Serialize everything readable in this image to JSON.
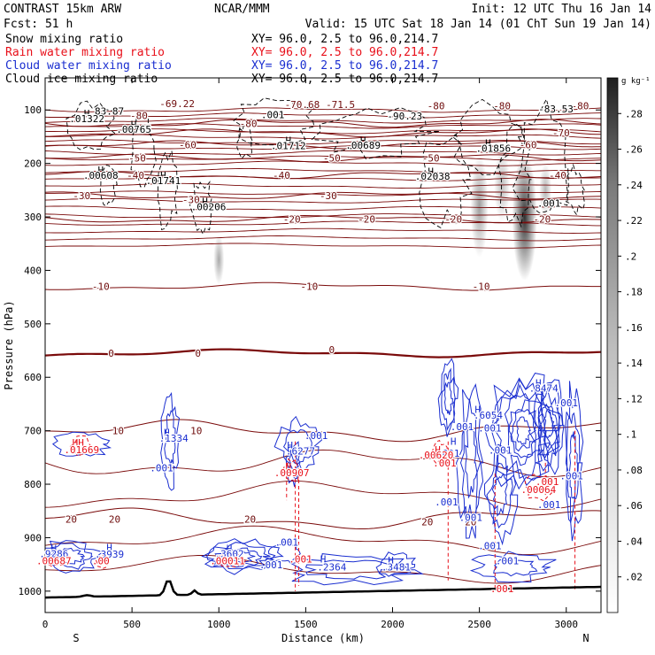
{
  "header": {
    "line1_left": "CONTRAST 15km ARW",
    "line1_center": "NCAR/MMM",
    "line1_right": "Init: 12 UTC Thu 16 Jan 14",
    "line2_left": "Fcst:   51 h",
    "line2_right": "Valid: 15 UTC Sat 18 Jan 14 (01 ChT Sun 19 Jan 14)"
  },
  "chart_data": {
    "type": "cross-section",
    "xlabel": "Distance (km)",
    "ylabel": "Pressure (hPa)",
    "x_ticks": [
      "0",
      "500",
      "1000",
      "1500",
      "2000",
      "2500",
      "3000"
    ],
    "y_ticks": [
      "100",
      "200",
      "300",
      "400",
      "500",
      "600",
      "700",
      "800",
      "900",
      "1000"
    ],
    "xlim": [
      0,
      3200
    ],
    "ylim": [
      1040,
      40
    ],
    "y_scale": "linear-reversed",
    "x_end_labels": {
      "left": "S",
      "right": "N"
    },
    "colorbar": {
      "unit": "g kg⁻¹",
      "ticks": [
        ".02",
        ".04",
        ".06",
        ".08",
        ".1",
        ".12",
        ".14",
        ".16",
        ".18",
        ".2",
        ".22",
        ".24",
        ".26",
        ".28"
      ],
      "range": [
        0,
        0.3
      ]
    },
    "series": [
      {
        "name": "Snow mixing ratio",
        "xy": "XY=  96.0,  2.5 to  96.0,214.7",
        "color": "#000000",
        "style": "filled-grey"
      },
      {
        "name": "Rain water mixing ratio",
        "xy": "XY=  96.0,  2.5 to  96.0,214.7",
        "color": "#e8101a",
        "style": "dashed"
      },
      {
        "name": "Cloud water mixing ratio",
        "xy": "XY=  96.0,  2.5 to  96.0,214.7",
        "color": "#1a2ed0",
        "style": "solid"
      },
      {
        "name": "Cloud ice mixing ratio",
        "xy": "XY=  96.0,  2.5 to  96.0,214.7",
        "color": "#000000",
        "style": "dashed"
      }
    ],
    "temperature_isotherms": [
      {
        "label": "-80",
        "p": 125
      },
      {
        "label": "-70",
        "p": 143
      },
      {
        "label": "-60",
        "p": 165
      },
      {
        "label": "-50",
        "p": 190
      },
      {
        "label": "-40",
        "p": 222
      },
      {
        "label": "-30",
        "p": 260
      },
      {
        "label": "-20",
        "p": 304
      },
      {
        "label": "-10",
        "p": 430
      },
      {
        "label": "0",
        "p": 555
      },
      {
        "label": "10",
        "p": 700
      },
      {
        "label": "20",
        "p": 865
      }
    ],
    "isotherm_labels": [
      {
        "text": "-69.22",
        "x": 760,
        "p": 88
      },
      {
        "text": "-70.68",
        "x": 1480,
        "p": 90
      },
      {
        "text": "-71.5",
        "x": 1700,
        "p": 90
      },
      {
        "text": "-80",
        "x": 2250,
        "p": 92
      },
      {
        "text": "-80",
        "x": 2630,
        "p": 92
      },
      {
        "text": "-80",
        "x": 3080,
        "p": 92
      },
      {
        "text": "-80",
        "x": 1170,
        "p": 125
      },
      {
        "text": "-80",
        "x": 540,
        "p": 110
      },
      {
        "text": "-70",
        "x": 2970,
        "p": 143
      },
      {
        "text": "-60",
        "x": 820,
        "p": 165
      },
      {
        "text": "-60",
        "x": 2780,
        "p": 165
      },
      {
        "text": "-50",
        "x": 530,
        "p": 190
      },
      {
        "text": "-50",
        "x": 1650,
        "p": 190
      },
      {
        "text": "-50",
        "x": 2220,
        "p": 190
      },
      {
        "text": "-40",
        "x": 520,
        "p": 222
      },
      {
        "text": "-40",
        "x": 1360,
        "p": 222
      },
      {
        "text": "-40",
        "x": 2950,
        "p": 222
      },
      {
        "text": "-30",
        "x": 210,
        "p": 260
      },
      {
        "text": "-30",
        "x": 1630,
        "p": 260
      },
      {
        "text": "-30",
        "x": 840,
        "p": 268
      },
      {
        "text": "-20",
        "x": 1420,
        "p": 304
      },
      {
        "text": "-20",
        "x": 2350,
        "p": 304
      },
      {
        "text": "-20",
        "x": 1850,
        "p": 304
      },
      {
        "text": "-20",
        "x": 2860,
        "p": 304
      },
      {
        "text": "-10",
        "x": 320,
        "p": 430
      },
      {
        "text": "-10",
        "x": 1520,
        "p": 430
      },
      {
        "text": "-10",
        "x": 2510,
        "p": 430
      },
      {
        "text": "0",
        "x": 380,
        "p": 555
      },
      {
        "text": "0",
        "x": 880,
        "p": 555
      },
      {
        "text": "0",
        "x": 1650,
        "p": 548
      },
      {
        "text": "10",
        "x": 420,
        "p": 700
      },
      {
        "text": "10",
        "x": 870,
        "p": 700
      },
      {
        "text": "20",
        "x": 150,
        "p": 865
      },
      {
        "text": "20",
        "x": 400,
        "p": 865
      },
      {
        "text": "20",
        "x": 1180,
        "p": 865
      },
      {
        "text": "20",
        "x": 2200,
        "p": 870
      },
      {
        "text": "20",
        "x": 2450,
        "p": 870
      }
    ],
    "ice_labels": [
      {
        "text": "83.87",
        "x": 370,
        "p": 102,
        "h": false
      },
      {
        "text": "H",
        "x": 240,
        "p": 106,
        "h": true
      },
      {
        "text": ".01322",
        "x": 240,
        "p": 116,
        "h": false
      },
      {
        "text": "H",
        "x": 510,
        "p": 127,
        "h": true
      },
      {
        "text": ".00765",
        "x": 510,
        "p": 136,
        "h": false
      },
      {
        "text": ".001",
        "x": 1310,
        "p": 109,
        "h": false
      },
      {
        "text": "-90.23",
        "x": 2070,
        "p": 111,
        "h": false
      },
      {
        "text": "-83.53",
        "x": 2940,
        "p": 98,
        "h": false
      },
      {
        "text": "H",
        "x": 1400,
        "p": 157,
        "h": true
      },
      {
        "text": ".01712",
        "x": 1400,
        "p": 167,
        "h": false
      },
      {
        "text": "H",
        "x": 1830,
        "p": 157,
        "h": true
      },
      {
        "text": ".00689",
        "x": 1830,
        "p": 166,
        "h": false
      },
      {
        "text": "H",
        "x": 2550,
        "p": 162,
        "h": true
      },
      {
        "text": ".01856",
        "x": 2580,
        "p": 172,
        "h": false
      },
      {
        "text": "H",
        "x": 320,
        "p": 212,
        "h": true
      },
      {
        "text": ".00608",
        "x": 320,
        "p": 222,
        "h": false
      },
      {
        "text": "H",
        "x": 680,
        "p": 222,
        "h": true
      },
      {
        "text": ".01741",
        "x": 680,
        "p": 232,
        "h": false
      },
      {
        "text": "H",
        "x": 2220,
        "p": 215,
        "h": true
      },
      {
        "text": ".02038",
        "x": 2230,
        "p": 224,
        "h": false
      },
      {
        "text": "H",
        "x": 920,
        "p": 271,
        "h": true
      },
      {
        "text": ".00206",
        "x": 940,
        "p": 281,
        "h": false
      },
      {
        "text": ".001",
        "x": 2900,
        "p": 274,
        "h": false
      }
    ],
    "cloud_labels": [
      {
        "text": "H",
        "x": 2490,
        "p": 660,
        "h": true
      },
      {
        "text": ".6054",
        "x": 2550,
        "p": 671,
        "h": false
      },
      {
        "text": "H",
        "x": 2840,
        "p": 610,
        "h": true
      },
      {
        "text": ".8474",
        "x": 2870,
        "p": 620,
        "h": false
      },
      {
        "text": ".001",
        "x": 3000,
        "p": 648,
        "h": false
      },
      {
        "text": ".001",
        "x": 2400,
        "p": 692,
        "h": false
      },
      {
        "text": ".001",
        "x": 2560,
        "p": 695,
        "h": false
      },
      {
        "text": "H",
        "x": 1410,
        "p": 727,
        "h": true
      },
      {
        "text": ".6277",
        "x": 1470,
        "p": 738,
        "h": false
      },
      {
        "text": ".001",
        "x": 1560,
        "p": 709,
        "h": false
      },
      {
        "text": "H",
        "x": 700,
        "p": 703,
        "h": true
      },
      {
        "text": ".1334",
        "x": 740,
        "p": 714,
        "h": false
      },
      {
        "text": ".001",
        "x": 670,
        "p": 769,
        "h": false
      },
      {
        "text": "H",
        "x": 2350,
        "p": 720,
        "h": true
      },
      {
        "text": ".001",
        "x": 2320,
        "p": 742,
        "h": false
      },
      {
        "text": ".001",
        "x": 2620,
        "p": 736,
        "h": false
      },
      {
        "text": ".001",
        "x": 3030,
        "p": 784,
        "h": false
      },
      {
        "text": ".001",
        "x": 2310,
        "p": 833,
        "h": false
      },
      {
        "text": ".001",
        "x": 2450,
        "p": 862,
        "h": false
      },
      {
        "text": ".001",
        "x": 2900,
        "p": 838,
        "h": false
      },
      {
        "text": ".001",
        "x": 2560,
        "p": 915,
        "h": false
      },
      {
        "text": ".001",
        "x": 1390,
        "p": 908,
        "h": false
      },
      {
        "text": ".001",
        "x": 1300,
        "p": 951,
        "h": false
      },
      {
        "text": "H",
        "x": 50,
        "p": 920,
        "h": true
      },
      {
        "text": ".9286",
        "x": 50,
        "p": 930,
        "h": false
      },
      {
        "text": "H",
        "x": 370,
        "p": 918,
        "h": true
      },
      {
        "text": ".3939",
        "x": 370,
        "p": 931,
        "h": false
      },
      {
        "text": "H",
        "x": 1060,
        "p": 920,
        "h": true
      },
      {
        "text": ".3602",
        "x": 1060,
        "p": 930,
        "h": false
      },
      {
        "text": "H",
        "x": 1600,
        "p": 940,
        "h": true
      },
      {
        "text": ".2364",
        "x": 1650,
        "p": 955,
        "h": false
      },
      {
        "text": "H",
        "x": 1990,
        "p": 942,
        "h": true
      },
      {
        "text": ".3481",
        "x": 2020,
        "p": 955,
        "h": false
      },
      {
        "text": ".001",
        "x": 2660,
        "p": 943,
        "h": false
      }
    ],
    "rain_labels": [
      {
        "text": "HH",
        "x": 190,
        "p": 722,
        "h": true
      },
      {
        "text": ".01669",
        "x": 210,
        "p": 735,
        "h": false
      },
      {
        "text": "H",
        "x": 1400,
        "p": 767,
        "h": true
      },
      {
        "text": ".00907",
        "x": 1420,
        "p": 778,
        "h": false
      },
      {
        "text": "H",
        "x": 2260,
        "p": 735,
        "h": true
      },
      {
        "text": ".00620",
        "x": 2250,
        "p": 745,
        "h": false
      },
      {
        "text": ".00064",
        "x": 2840,
        "p": 810,
        "h": false
      },
      {
        "text": ".001",
        "x": 2300,
        "p": 760,
        "h": false
      },
      {
        "text": ".001",
        "x": 2890,
        "p": 795,
        "h": false
      },
      {
        "text": ".00687",
        "x": 50,
        "p": 943,
        "h": false
      },
      {
        "text": ".00",
        "x": 320,
        "p": 943,
        "h": false
      },
      {
        "text": ".00011",
        "x": 1050,
        "p": 943,
        "h": false
      },
      {
        "text": ".001",
        "x": 1470,
        "p": 940,
        "h": false
      },
      {
        "text": ".001",
        "x": 2630,
        "p": 995,
        "h": false
      }
    ]
  }
}
